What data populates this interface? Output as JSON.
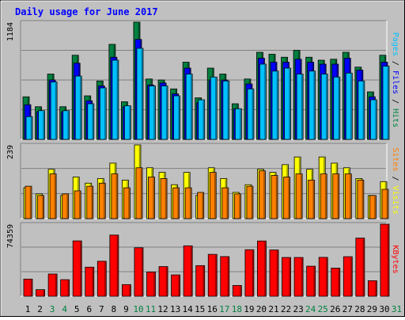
{
  "title": "Daily usage for June 2017",
  "colors": {
    "background": "#c0c0c0",
    "title": "#0000ff",
    "hits": "#008040",
    "files": "#0000ff",
    "pages": "#00c0ff",
    "visits": "#ffff00",
    "sites": "#ff8000",
    "kbytes": "#ff0000",
    "weekend_day": "#008040",
    "weekday": "#000000"
  },
  "chart_data": [
    {
      "type": "bar",
      "panel": "hits-files-pages",
      "x": [
        1,
        2,
        3,
        4,
        5,
        6,
        7,
        8,
        9,
        10,
        11,
        12,
        13,
        14,
        15,
        16,
        17,
        18,
        19,
        20,
        21,
        22,
        23,
        24,
        25,
        26,
        27,
        28,
        29,
        30,
        31
      ],
      "ymax_label": "1184",
      "ylim": [
        0,
        1184
      ],
      "axis_label_parts": [
        {
          "text": "Pages",
          "color": "#00c0ff"
        },
        {
          "text": " / ",
          "color": "#000000"
        },
        {
          "text": "Files",
          "color": "#0000ff"
        },
        {
          "text": " / ",
          "color": "#000000"
        },
        {
          "text": "Hits",
          "color": "#008040"
        }
      ],
      "series": [
        {
          "name": "Hits",
          "color": "#008040",
          "values": [
            430,
            330,
            660,
            330,
            850,
            440,
            590,
            960,
            380,
            1184,
            610,
            600,
            510,
            780,
            420,
            720,
            660,
            360,
            610,
            880,
            860,
            830,
            900,
            830,
            800,
            810,
            880,
            730,
            480,
            850,
            0
          ]
        },
        {
          "name": "Files",
          "color": "#0000ff",
          "values": [
            350,
            280,
            600,
            280,
            770,
            390,
            540,
            830,
            330,
            1010,
            550,
            570,
            460,
            720,
            370,
            600,
            600,
            310,
            560,
            820,
            780,
            780,
            810,
            780,
            760,
            760,
            820,
            700,
            430,
            780,
            0
          ]
        },
        {
          "name": "Pages",
          "color": "#00c0ff",
          "values": [
            230,
            290,
            580,
            290,
            640,
            360,
            520,
            800,
            340,
            920,
            540,
            540,
            440,
            660,
            400,
            630,
            590,
            310,
            510,
            760,
            690,
            720,
            660,
            690,
            660,
            630,
            670,
            590,
            400,
            740,
            0
          ]
        }
      ]
    },
    {
      "type": "bar",
      "panel": "visits-sites",
      "x": [
        1,
        2,
        3,
        4,
        5,
        6,
        7,
        8,
        9,
        10,
        11,
        12,
        13,
        14,
        15,
        16,
        17,
        18,
        19,
        20,
        21,
        22,
        23,
        24,
        25,
        26,
        27,
        28,
        29,
        30,
        31
      ],
      "ymax_label": "239",
      "ylim": [
        0,
        239
      ],
      "axis_label_parts": [
        {
          "text": "Sites",
          "color": "#ff8000"
        },
        {
          "text": " / ",
          "color": "#000000"
        },
        {
          "text": "Visits",
          "color": "#ffff00"
        }
      ],
      "series": [
        {
          "name": "Visits",
          "color": "#ffff00",
          "values": [
            100,
            80,
            160,
            75,
            135,
            115,
            130,
            180,
            125,
            239,
            165,
            150,
            110,
            150,
            75,
            165,
            130,
            85,
            110,
            160,
            150,
            175,
            200,
            160,
            200,
            180,
            165,
            130,
            75,
            120,
            0
          ]
        },
        {
          "name": "Sites",
          "color": "#ff8000",
          "values": [
            105,
            75,
            145,
            80,
            90,
            105,
            115,
            145,
            100,
            165,
            135,
            130,
            100,
            100,
            85,
            150,
            100,
            80,
            105,
            155,
            140,
            135,
            145,
            125,
            145,
            145,
            145,
            125,
            75,
            95,
            0
          ]
        }
      ]
    },
    {
      "type": "bar",
      "panel": "kbytes",
      "x": [
        1,
        2,
        3,
        4,
        5,
        6,
        7,
        8,
        9,
        10,
        11,
        12,
        13,
        14,
        15,
        16,
        17,
        18,
        19,
        20,
        21,
        22,
        23,
        24,
        25,
        26,
        27,
        28,
        29,
        30,
        31
      ],
      "ymax_label": "74359",
      "ylim": [
        0,
        74359
      ],
      "axis_label_parts": [
        {
          "text": "KBytes",
          "color": "#ff0000"
        }
      ],
      "series": [
        {
          "name": "KBytes",
          "color": "#ff0000",
          "values": [
            17700,
            6800,
            22900,
            17100,
            57100,
            30000,
            36100,
            63100,
            12000,
            50000,
            25000,
            30600,
            22000,
            52000,
            31600,
            43200,
            40900,
            11100,
            48000,
            57000,
            47700,
            40000,
            40000,
            31000,
            40100,
            29000,
            40800,
            60000,
            16000,
            74359,
            0
          ]
        }
      ]
    }
  ],
  "x_axis": {
    "day_labels": [
      "1",
      "2",
      "3",
      "4",
      "5",
      "6",
      "7",
      "8",
      "9",
      "10",
      "11",
      "12",
      "13",
      "14",
      "15",
      "16",
      "17",
      "18",
      "19",
      "20",
      "21",
      "22",
      "23",
      "24",
      "25",
      "26",
      "27",
      "28",
      "29",
      "30",
      "31"
    ],
    "weekend_days": [
      3,
      4,
      10,
      11,
      17,
      18,
      24,
      25,
      31
    ]
  }
}
